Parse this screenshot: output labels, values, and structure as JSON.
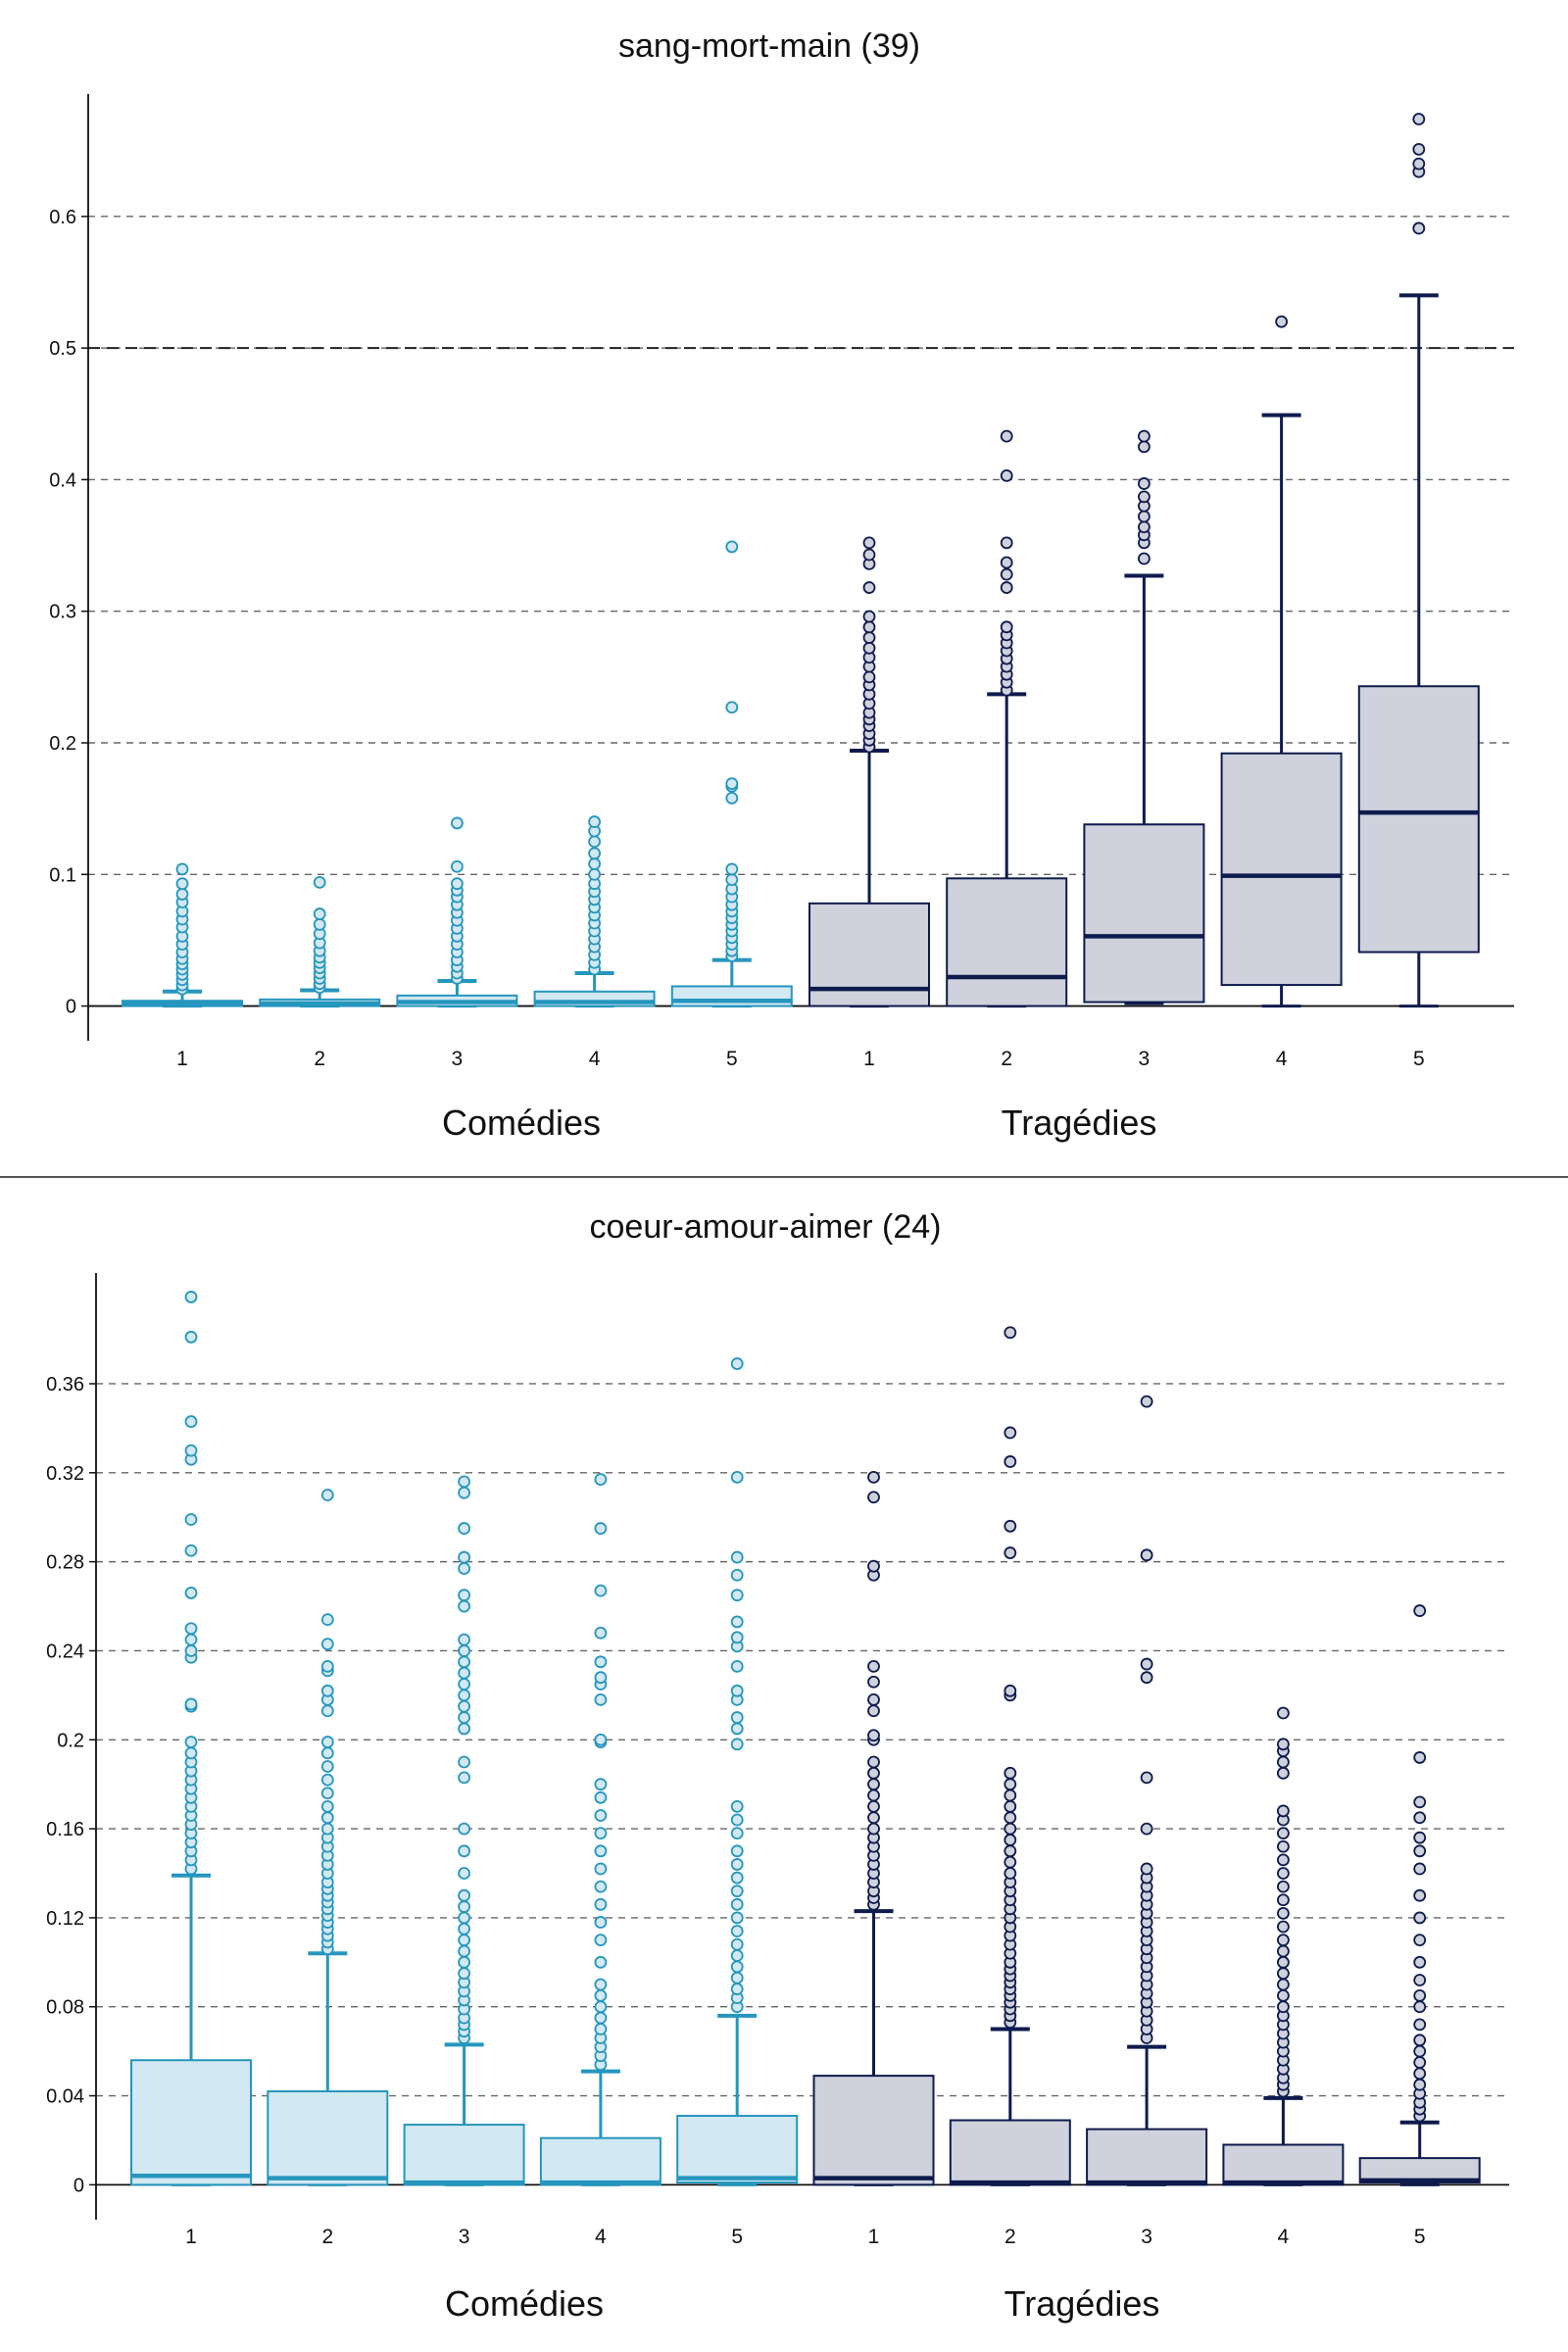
{
  "colors": {
    "comedies": "#2596be",
    "comedies_fill": "#d2e8f2",
    "tragedies": "#0e1b4d",
    "tragedies_fill": "#cfd1dc",
    "grid": "#666666",
    "axis": "#111111"
  },
  "chart_data": [
    {
      "type": "box",
      "title": "sang-mort-main (39)",
      "ylim": [
        -0.01,
        0.69
      ],
      "yticks": [
        "0",
        "0.1",
        "0.2",
        "0.3",
        "0.4",
        "0.5",
        "0.6"
      ],
      "ytick_values": [
        0,
        0.1,
        0.2,
        0.3,
        0.4,
        0.5,
        0.6
      ],
      "reference_line": 0.5,
      "grid": true,
      "groups": [
        {
          "label": "Comédies",
          "boxes": [
            {
              "category": "1",
              "whisker_low": 0,
              "q1": 0,
              "median": 0.002,
              "q3": 0.004,
              "whisker_high": 0.011,
              "outliers": [
                0.013,
                0.016,
                0.02,
                0.024,
                0.028,
                0.032,
                0.036,
                0.041,
                0.047,
                0.053,
                0.06,
                0.066,
                0.072,
                0.079,
                0.085,
                0.093,
                0.104
              ]
            },
            {
              "category": "2",
              "whisker_low": 0,
              "q1": 0,
              "median": 0.002,
              "q3": 0.005,
              "whisker_high": 0.012,
              "outliers": [
                0.014,
                0.017,
                0.021,
                0.025,
                0.029,
                0.033,
                0.037,
                0.042,
                0.048,
                0.055,
                0.062,
                0.07,
                0.094
              ]
            },
            {
              "category": "3",
              "whisker_low": 0,
              "q1": 0,
              "median": 0.003,
              "q3": 0.008,
              "whisker_high": 0.019,
              "outliers": [
                0.021,
                0.025,
                0.03,
                0.035,
                0.041,
                0.047,
                0.053,
                0.059,
                0.065,
                0.071,
                0.077,
                0.083,
                0.088,
                0.093,
                0.106,
                0.139
              ]
            },
            {
              "category": "4",
              "whisker_low": 0,
              "q1": 0,
              "median": 0.003,
              "q3": 0.011,
              "whisker_high": 0.025,
              "outliers": [
                0.028,
                0.033,
                0.039,
                0.045,
                0.051,
                0.057,
                0.063,
                0.069,
                0.075,
                0.081,
                0.087,
                0.093,
                0.1,
                0.108,
                0.116,
                0.125,
                0.133,
                0.14
              ]
            },
            {
              "category": "5",
              "whisker_low": 0,
              "q1": 0,
              "median": 0.004,
              "q3": 0.015,
              "whisker_high": 0.035,
              "outliers": [
                0.038,
                0.042,
                0.047,
                0.052,
                0.057,
                0.062,
                0.067,
                0.072,
                0.077,
                0.083,
                0.089,
                0.096,
                0.104,
                0.158,
                0.167,
                0.169,
                0.227,
                0.349
              ]
            }
          ]
        },
        {
          "label": "Tragédies",
          "boxes": [
            {
              "category": "1",
              "whisker_low": 0,
              "q1": 0,
              "median": 0.013,
              "q3": 0.078,
              "whisker_high": 0.194,
              "outliers": [
                0.197,
                0.202,
                0.207,
                0.213,
                0.218,
                0.223,
                0.23,
                0.237,
                0.244,
                0.25,
                0.258,
                0.265,
                0.272,
                0.28,
                0.288,
                0.296,
                0.318,
                0.336,
                0.343,
                0.352
              ]
            },
            {
              "category": "2",
              "whisker_low": 0,
              "q1": 0,
              "median": 0.022,
              "q3": 0.097,
              "whisker_high": 0.237,
              "outliers": [
                0.24,
                0.246,
                0.252,
                0.258,
                0.264,
                0.27,
                0.276,
                0.282,
                0.288,
                0.318,
                0.328,
                0.337,
                0.352,
                0.403,
                0.433
              ]
            },
            {
              "category": "3",
              "whisker_low": 0.002,
              "q1": 0.003,
              "median": 0.053,
              "q3": 0.138,
              "whisker_high": 0.327,
              "outliers": [
                0.34,
                0.352,
                0.358,
                0.364,
                0.372,
                0.38,
                0.387,
                0.397,
                0.425,
                0.433
              ]
            },
            {
              "category": "4",
              "whisker_low": 0,
              "q1": 0.016,
              "median": 0.099,
              "q3": 0.192,
              "whisker_high": 0.449,
              "outliers": [
                0.52
              ]
            },
            {
              "category": "5",
              "whisker_low": 0,
              "q1": 0.041,
              "median": 0.147,
              "q3": 0.243,
              "whisker_high": 0.54,
              "outliers": [
                0.591,
                0.634,
                0.64,
                0.651,
                0.674
              ]
            }
          ]
        }
      ]
    },
    {
      "type": "box",
      "title": "coeur-amour-aimer (24)",
      "ylim": [
        -0.006,
        0.408
      ],
      "yticks": [
        "0",
        "0.04",
        "0.08",
        "0.12",
        "0.16",
        "0.2",
        "0.24",
        "0.28",
        "0.32",
        "0.36"
      ],
      "ytick_values": [
        0,
        0.04,
        0.08,
        0.12,
        0.16,
        0.2,
        0.24,
        0.28,
        0.32,
        0.36
      ],
      "reference_line": null,
      "grid": true,
      "groups": [
        {
          "label": "Comédies",
          "boxes": [
            {
              "category": "1",
              "whisker_low": 0,
              "q1": 0,
              "median": 0.004,
              "q3": 0.056,
              "whisker_high": 0.139,
              "outliers": [
                0.142,
                0.146,
                0.15,
                0.154,
                0.158,
                0.162,
                0.166,
                0.17,
                0.174,
                0.178,
                0.182,
                0.186,
                0.19,
                0.194,
                0.199,
                0.215,
                0.216,
                0.237,
                0.24,
                0.245,
                0.25,
                0.266,
                0.285,
                0.299,
                0.326,
                0.33,
                0.343,
                0.381,
                0.399
              ]
            },
            {
              "category": "2",
              "whisker_low": 0,
              "q1": 0,
              "median": 0.003,
              "q3": 0.042,
              "whisker_high": 0.104,
              "outliers": [
                0.106,
                0.109,
                0.112,
                0.115,
                0.118,
                0.121,
                0.124,
                0.127,
                0.13,
                0.133,
                0.136,
                0.14,
                0.144,
                0.148,
                0.152,
                0.156,
                0.16,
                0.165,
                0.17,
                0.176,
                0.182,
                0.188,
                0.194,
                0.199,
                0.213,
                0.218,
                0.222,
                0.231,
                0.233,
                0.243,
                0.254,
                0.31
              ]
            },
            {
              "category": "3",
              "whisker_low": 0,
              "q1": 0,
              "median": 0.001,
              "q3": 0.027,
              "whisker_high": 0.063,
              "outliers": [
                0.066,
                0.069,
                0.072,
                0.075,
                0.079,
                0.083,
                0.087,
                0.091,
                0.095,
                0.1,
                0.105,
                0.11,
                0.115,
                0.12,
                0.125,
                0.13,
                0.14,
                0.15,
                0.16,
                0.183,
                0.19,
                0.205,
                0.21,
                0.215,
                0.22,
                0.225,
                0.23,
                0.235,
                0.24,
                0.245,
                0.26,
                0.265,
                0.277,
                0.282,
                0.295,
                0.311,
                0.316
              ]
            },
            {
              "category": "4",
              "whisker_low": 0,
              "q1": 0,
              "median": 0.001,
              "q3": 0.021,
              "whisker_high": 0.051,
              "outliers": [
                0.054,
                0.058,
                0.062,
                0.066,
                0.07,
                0.075,
                0.08,
                0.085,
                0.09,
                0.1,
                0.11,
                0.118,
                0.126,
                0.134,
                0.142,
                0.15,
                0.158,
                0.166,
                0.174,
                0.18,
                0.199,
                0.2,
                0.218,
                0.225,
                0.228,
                0.235,
                0.248,
                0.267,
                0.295,
                0.317
              ]
            },
            {
              "category": "5",
              "whisker_low": 0,
              "q1": 0.001,
              "median": 0.003,
              "q3": 0.031,
              "whisker_high": 0.076,
              "outliers": [
                0.08,
                0.084,
                0.088,
                0.093,
                0.098,
                0.103,
                0.108,
                0.114,
                0.12,
                0.126,
                0.132,
                0.138,
                0.144,
                0.15,
                0.158,
                0.164,
                0.17,
                0.198,
                0.205,
                0.21,
                0.218,
                0.222,
                0.233,
                0.242,
                0.246,
                0.253,
                0.265,
                0.274,
                0.282,
                0.318,
                0.369
              ]
            }
          ]
        },
        {
          "label": "Tragédies",
          "boxes": [
            {
              "category": "1",
              "whisker_low": 0,
              "q1": 0,
              "median": 0.003,
              "q3": 0.049,
              "whisker_high": 0.123,
              "outliers": [
                0.126,
                0.129,
                0.132,
                0.136,
                0.14,
                0.144,
                0.148,
                0.152,
                0.156,
                0.16,
                0.165,
                0.17,
                0.175,
                0.18,
                0.185,
                0.19,
                0.2,
                0.202,
                0.213,
                0.218,
                0.226,
                0.233,
                0.274,
                0.278,
                0.309,
                0.318
              ]
            },
            {
              "category": "2",
              "whisker_low": 0,
              "q1": 0,
              "median": 0.001,
              "q3": 0.029,
              "whisker_high": 0.07,
              "outliers": [
                0.073,
                0.076,
                0.079,
                0.082,
                0.085,
                0.088,
                0.091,
                0.094,
                0.097,
                0.1,
                0.104,
                0.108,
                0.112,
                0.116,
                0.12,
                0.124,
                0.128,
                0.132,
                0.136,
                0.14,
                0.145,
                0.15,
                0.155,
                0.16,
                0.165,
                0.17,
                0.175,
                0.18,
                0.185,
                0.22,
                0.222,
                0.284,
                0.296,
                0.325,
                0.338,
                0.383
              ]
            },
            {
              "category": "3",
              "whisker_low": 0,
              "q1": 0,
              "median": 0.001,
              "q3": 0.025,
              "whisker_high": 0.062,
              "outliers": [
                0.066,
                0.07,
                0.074,
                0.078,
                0.082,
                0.086,
                0.09,
                0.094,
                0.098,
                0.102,
                0.106,
                0.11,
                0.114,
                0.118,
                0.122,
                0.126,
                0.13,
                0.134,
                0.138,
                0.142,
                0.16,
                0.183,
                0.228,
                0.234,
                0.283,
                0.352
              ]
            },
            {
              "category": "4",
              "whisker_low": 0,
              "q1": 0,
              "median": 0.001,
              "q3": 0.018,
              "whisker_high": 0.039,
              "outliers": [
                0.042,
                0.045,
                0.048,
                0.052,
                0.056,
                0.06,
                0.064,
                0.068,
                0.072,
                0.076,
                0.08,
                0.085,
                0.09,
                0.095,
                0.1,
                0.105,
                0.11,
                0.116,
                0.122,
                0.128,
                0.134,
                0.14,
                0.146,
                0.152,
                0.158,
                0.164,
                0.168,
                0.185,
                0.19,
                0.195,
                0.198,
                0.212
              ]
            },
            {
              "category": "5",
              "whisker_low": 0,
              "q1": 0.001,
              "median": 0.002,
              "q3": 0.012,
              "whisker_high": 0.028,
              "outliers": [
                0.031,
                0.034,
                0.037,
                0.041,
                0.045,
                0.05,
                0.055,
                0.06,
                0.065,
                0.072,
                0.08,
                0.085,
                0.092,
                0.1,
                0.11,
                0.12,
                0.13,
                0.142,
                0.15,
                0.156,
                0.165,
                0.172,
                0.192,
                0.258
              ]
            }
          ]
        }
      ]
    }
  ]
}
